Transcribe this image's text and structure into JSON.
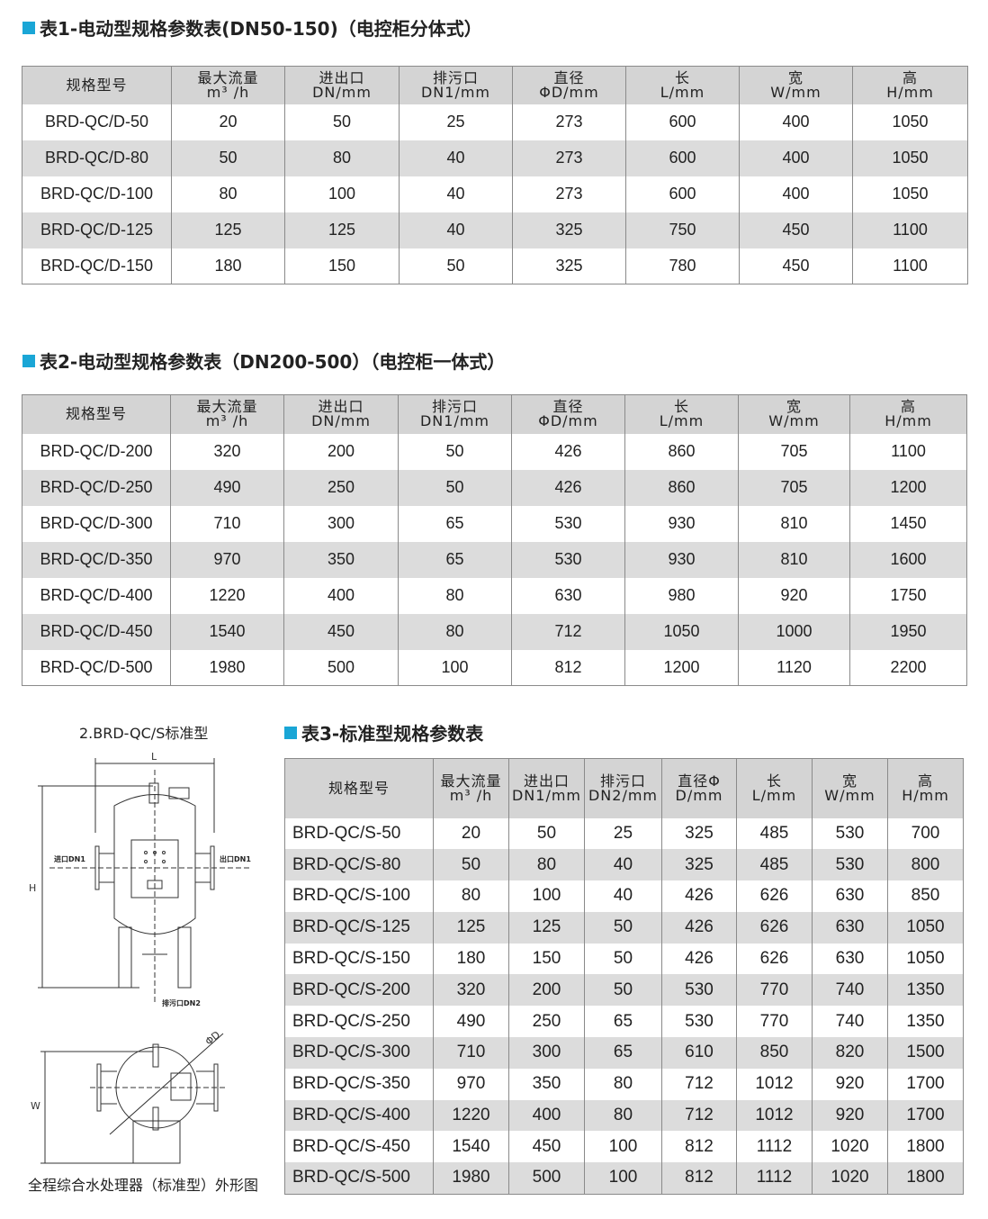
{
  "accent_color": "#1aa6d6",
  "table1": {
    "title": "表1-电动型规格参数表(DN50-150)（电控柜分体式）",
    "headers": [
      [
        "规格型号",
        ""
      ],
      [
        "最大流量",
        "m³ /h"
      ],
      [
        "进出口",
        "DN/mm"
      ],
      [
        "排污口",
        "DN1/mm"
      ],
      [
        "直径",
        "ΦD/mm"
      ],
      [
        "长",
        "L/mm"
      ],
      [
        "宽",
        "W/mm"
      ],
      [
        "高",
        "H/mm"
      ]
    ],
    "rows": [
      [
        "BRD-QC/D-50",
        "20",
        "50",
        "25",
        "273",
        "600",
        "400",
        "1050"
      ],
      [
        "BRD-QC/D-80",
        "50",
        "80",
        "40",
        "273",
        "600",
        "400",
        "1050"
      ],
      [
        "BRD-QC/D-100",
        "80",
        "100",
        "40",
        "273",
        "600",
        "400",
        "1050"
      ],
      [
        "BRD-QC/D-125",
        "125",
        "125",
        "40",
        "325",
        "750",
        "450",
        "1100"
      ],
      [
        "BRD-QC/D-150",
        "180",
        "150",
        "50",
        "325",
        "780",
        "450",
        "1100"
      ]
    ]
  },
  "table2": {
    "title": "表2-电动型规格参数表（DN200-500）（电控柜一体式）",
    "headers": [
      [
        "规格型号",
        ""
      ],
      [
        "最大流量",
        "m³ /h"
      ],
      [
        "进出口",
        "DN/mm"
      ],
      [
        "排污口",
        "DN1/mm"
      ],
      [
        "直径",
        "ΦD/mm"
      ],
      [
        "长",
        "L/mm"
      ],
      [
        "宽",
        "W/mm"
      ],
      [
        "高",
        "H/mm"
      ]
    ],
    "rows": [
      [
        "BRD-QC/D-200",
        "320",
        "200",
        "50",
        "426",
        "860",
        "705",
        "1100"
      ],
      [
        "BRD-QC/D-250",
        "490",
        "250",
        "50",
        "426",
        "860",
        "705",
        "1200"
      ],
      [
        "BRD-QC/D-300",
        "710",
        "300",
        "65",
        "530",
        "930",
        "810",
        "1450"
      ],
      [
        "BRD-QC/D-350",
        "970",
        "350",
        "65",
        "530",
        "930",
        "810",
        "1600"
      ],
      [
        "BRD-QC/D-400",
        "1220",
        "400",
        "80",
        "630",
        "980",
        "920",
        "1750"
      ],
      [
        "BRD-QC/D-450",
        "1540",
        "450",
        "80",
        "712",
        "1050",
        "1000",
        "1950"
      ],
      [
        "BRD-QC/D-500",
        "1980",
        "500",
        "100",
        "812",
        "1200",
        "1120",
        "2200"
      ]
    ]
  },
  "table3": {
    "title": "表3-标准型规格参数表",
    "headers": [
      [
        "规格型号",
        ""
      ],
      [
        "最大流量",
        "m³ /h"
      ],
      [
        "进出口",
        "DN1/mm"
      ],
      [
        "排污口",
        "DN2/mm"
      ],
      [
        "直径Φ",
        "D/mm"
      ],
      [
        "长",
        "L/mm"
      ],
      [
        "宽",
        "W/mm"
      ],
      [
        "高",
        "H/mm"
      ]
    ],
    "rows": [
      [
        "BRD-QC/S-50",
        "20",
        "50",
        "25",
        "325",
        "485",
        "530",
        "700"
      ],
      [
        "BRD-QC/S-80",
        "50",
        "80",
        "40",
        "325",
        "485",
        "530",
        "800"
      ],
      [
        "BRD-QC/S-100",
        "80",
        "100",
        "40",
        "426",
        "626",
        "630",
        "850"
      ],
      [
        "BRD-QC/S-125",
        "125",
        "125",
        "50",
        "426",
        "626",
        "630",
        "1050"
      ],
      [
        "BRD-QC/S-150",
        "180",
        "150",
        "50",
        "426",
        "626",
        "630",
        "1050"
      ],
      [
        "BRD-QC/S-200",
        "320",
        "200",
        "50",
        "530",
        "770",
        "740",
        "1350"
      ],
      [
        "BRD-QC/S-250",
        "490",
        "250",
        "65",
        "530",
        "770",
        "740",
        "1350"
      ],
      [
        "BRD-QC/S-300",
        "710",
        "300",
        "65",
        "610",
        "850",
        "820",
        "1500"
      ],
      [
        "BRD-QC/S-350",
        "970",
        "350",
        "80",
        "712",
        "1012",
        "920",
        "1700"
      ],
      [
        "BRD-QC/S-400",
        "1220",
        "400",
        "80",
        "712",
        "1012",
        "920",
        "1700"
      ],
      [
        "BRD-QC/S-450",
        "1540",
        "450",
        "100",
        "812",
        "1112",
        "1020",
        "1800"
      ],
      [
        "BRD-QC/S-500",
        "1980",
        "500",
        "100",
        "812",
        "1112",
        "1020",
        "1800"
      ]
    ]
  },
  "diagram": {
    "title": "2.BRD-QC/S标准型",
    "caption": "全程综合水处理器（标准型）外形图",
    "label_L": "L",
    "label_H": "H",
    "label_W": "W",
    "label_D": "ΦD",
    "inlet": "进口DN1",
    "outlet": "出口DN1",
    "drain": "排污口DN2"
  }
}
